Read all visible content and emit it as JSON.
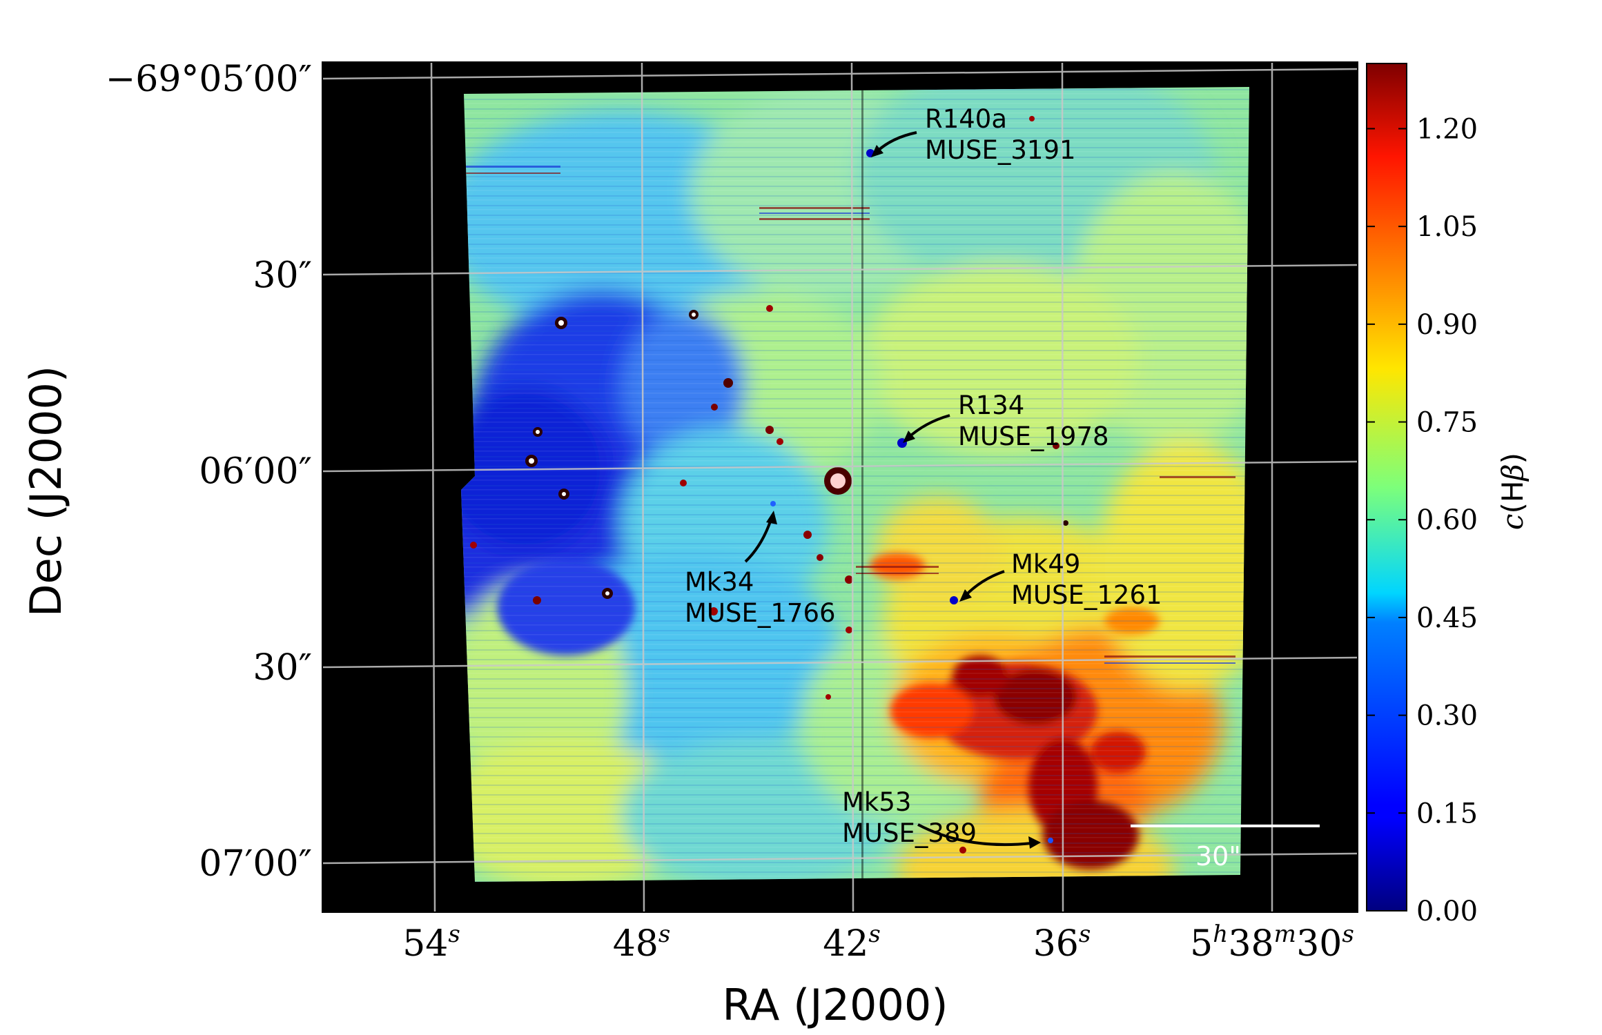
{
  "chart_data": {
    "type": "heatmap",
    "xlabel": "RA (J2000)",
    "ylabel": "Dec (J2000)",
    "x_ticks": [
      {
        "value_s": 54,
        "num": "54",
        "sup": "s"
      },
      {
        "value_s": 48,
        "num": "48",
        "sup": "s"
      },
      {
        "value_s": 42,
        "num": "42",
        "sup": "s"
      },
      {
        "value_s": 36,
        "num": "36",
        "sup": "s"
      },
      {
        "value_s": 30,
        "parts": [
          [
            "5",
            "h"
          ],
          [
            "38",
            "m"
          ],
          [
            "30",
            "s"
          ]
        ]
      }
    ],
    "y_ticks": [
      {
        "value_arcsec": 0,
        "label": "−69°05′00″"
      },
      {
        "value_arcsec": 30,
        "label": "30″"
      },
      {
        "value_arcsec": 60,
        "label": "06′00″"
      },
      {
        "value_arcsec": 90,
        "label": "30″"
      },
      {
        "value_arcsec": 120,
        "label": "07′00″"
      }
    ],
    "colorbar": {
      "label": "c(Hβ)",
      "label_italic": "c",
      "label_rest": "(H",
      "label_beta": "β",
      "label_close": ")",
      "min": 0.0,
      "max": 1.3,
      "ticks": [
        "0.00",
        "0.15",
        "0.30",
        "0.45",
        "0.60",
        "0.75",
        "0.90",
        "1.05",
        "1.20"
      ],
      "colormap": "jet"
    },
    "annotations": [
      {
        "name": "R140a",
        "id": "MUSE_3191"
      },
      {
        "name": "R134",
        "id": "MUSE_1978"
      },
      {
        "name": "Mk34",
        "id": "MUSE_1766"
      },
      {
        "name": "Mk49",
        "id": "MUSE_1261"
      },
      {
        "name": "Mk53",
        "id": "MUSE_389"
      }
    ],
    "scale_bar": "30\"",
    "grid": true
  }
}
